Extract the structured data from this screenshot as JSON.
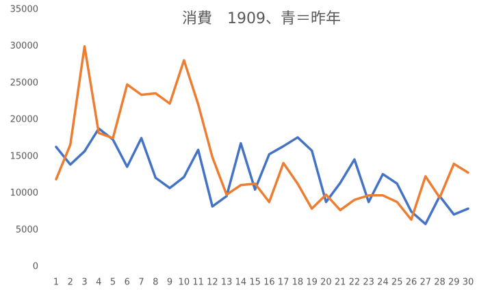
{
  "chart_data": {
    "type": "line",
    "title": "消費　1909、青＝昨年",
    "categories": [
      1,
      2,
      3,
      4,
      5,
      6,
      7,
      8,
      9,
      10,
      11,
      12,
      13,
      14,
      15,
      16,
      17,
      18,
      19,
      20,
      21,
      22,
      23,
      24,
      25,
      26,
      27,
      28,
      29,
      30
    ],
    "series": [
      {
        "color": "#4472c4",
        "values": [
          16300,
          13900,
          15700,
          18800,
          17300,
          13600,
          17500,
          12100,
          10700,
          12200,
          15900,
          8200,
          9600,
          16800,
          10500,
          15300,
          16400,
          17600,
          15800,
          8800,
          11400,
          14600,
          8800,
          12600,
          11300,
          7500,
          5800,
          9600,
          7100,
          7900
        ]
      },
      {
        "color": "#ed7d31",
        "values": [
          11900,
          16600,
          30000,
          18200,
          17500,
          24800,
          23400,
          23600,
          22200,
          28100,
          22100,
          14900,
          9800,
          11100,
          11300,
          8800,
          14100,
          11300,
          7900,
          9800,
          7700,
          9100,
          9700,
          9700,
          8800,
          6400,
          12300,
          9400,
          14000,
          12800
        ]
      }
    ],
    "ylim": [
      0,
      35000
    ],
    "yticks": [
      0,
      5000,
      10000,
      15000,
      20000,
      25000,
      30000,
      35000
    ],
    "grid": false
  }
}
